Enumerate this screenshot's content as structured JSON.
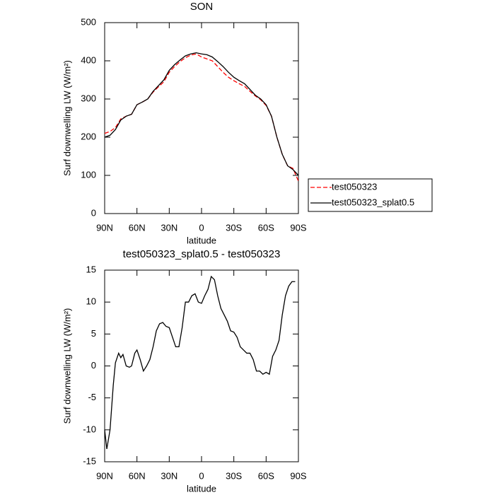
{
  "chart_data": [
    {
      "type": "line",
      "title": "SON",
      "xlabel": "latitude",
      "ylabel": "Surf downwelling LW (W/m²)",
      "x": [
        90,
        85,
        80,
        75,
        70,
        65,
        60,
        55,
        50,
        45,
        40,
        35,
        30,
        25,
        20,
        15,
        10,
        5,
        0,
        -5,
        -10,
        -15,
        -20,
        -25,
        -30,
        -35,
        -40,
        -45,
        -50,
        -55,
        -60,
        -65,
        -70,
        -75,
        -80,
        -85,
        -90
      ],
      "series": [
        {
          "name": "test050323",
          "color": "#ff0000",
          "linestyle": "dashed",
          "values": [
            210,
            215,
            225,
            248,
            255,
            260,
            285,
            292,
            300,
            318,
            332,
            345,
            370,
            385,
            398,
            408,
            415,
            418,
            410,
            405,
            400,
            385,
            370,
            357,
            348,
            340,
            333,
            320,
            308,
            298,
            283,
            255,
            200,
            155,
            125,
            118,
            85
          ]
        },
        {
          "name": "test050323_splat0.5",
          "color": "#000000",
          "linestyle": "solid",
          "values": [
            200,
            205,
            220,
            245,
            255,
            260,
            285,
            292,
            300,
            320,
            335,
            350,
            375,
            390,
            402,
            413,
            418,
            421,
            418,
            416,
            410,
            398,
            385,
            370,
            357,
            348,
            340,
            325,
            310,
            300,
            285,
            255,
            200,
            155,
            125,
            115,
            100
          ]
        }
      ],
      "xlim": [
        90,
        -90
      ],
      "xticks": [
        {
          "value": 90,
          "label": "90N"
        },
        {
          "value": 60,
          "label": "60N"
        },
        {
          "value": 30,
          "label": "30N"
        },
        0,
        {
          "value": -30,
          "label": "30S"
        },
        {
          "value": -60,
          "label": "60S"
        },
        {
          "value": -90,
          "label": "90S"
        }
      ],
      "ylim": [
        0,
        500
      ],
      "yticks": [
        0,
        100,
        200,
        300,
        400,
        500
      ],
      "legend": "right"
    },
    {
      "type": "line",
      "title": "test050323_splat0.5 - test050323",
      "xlabel": "latitude",
      "ylabel": "Surf downwelling LW (W/m²)",
      "x": [
        90,
        88,
        85,
        82,
        80,
        77,
        75,
        73,
        70,
        67,
        65,
        62,
        60,
        57,
        54,
        51,
        48,
        45,
        42,
        39,
        36,
        33,
        30,
        27,
        24,
        21,
        18,
        15,
        12,
        9,
        6,
        3,
        0,
        -3,
        -6,
        -9,
        -12,
        -15,
        -18,
        -21,
        -24,
        -27,
        -30,
        -33,
        -36,
        -39,
        -42,
        -45,
        -48,
        -51,
        -54,
        -57,
        -60,
        -63,
        -66,
        -69,
        -72,
        -75,
        -78,
        -81,
        -84,
        -87
      ],
      "series": [
        {
          "color": "#000000",
          "linestyle": "solid",
          "values": [
            -10,
            -13,
            -10,
            -3,
            0.5,
            2,
            1.3,
            1.8,
            0,
            -0.2,
            0,
            2,
            2.5,
            1,
            -0.8,
            0,
            1,
            3,
            5.5,
            6.6,
            6.8,
            6.2,
            6,
            4.5,
            3,
            3,
            6,
            10,
            10,
            11,
            11.3,
            10,
            9.8,
            11,
            12,
            14,
            13.5,
            11,
            9,
            8,
            7,
            5.5,
            5.3,
            4.5,
            3,
            2.5,
            2,
            2,
            1,
            -0.8,
            -0.8,
            -1.3,
            -1,
            -1.3,
            1.5,
            2.5,
            4,
            8,
            11,
            12.5,
            13.2,
            13.2
          ]
        }
      ],
      "xlim": [
        90,
        -90
      ],
      "xticks": [
        {
          "value": 90,
          "label": "90N"
        },
        {
          "value": 60,
          "label": "60N"
        },
        {
          "value": 30,
          "label": "30N"
        },
        0,
        {
          "value": -30,
          "label": "30S"
        },
        {
          "value": -60,
          "label": "60S"
        },
        {
          "value": -90,
          "label": "90S"
        }
      ],
      "ylim": [
        -15,
        15
      ],
      "yticks": [
        -15,
        -10,
        -5,
        0,
        5,
        10,
        15
      ]
    }
  ]
}
